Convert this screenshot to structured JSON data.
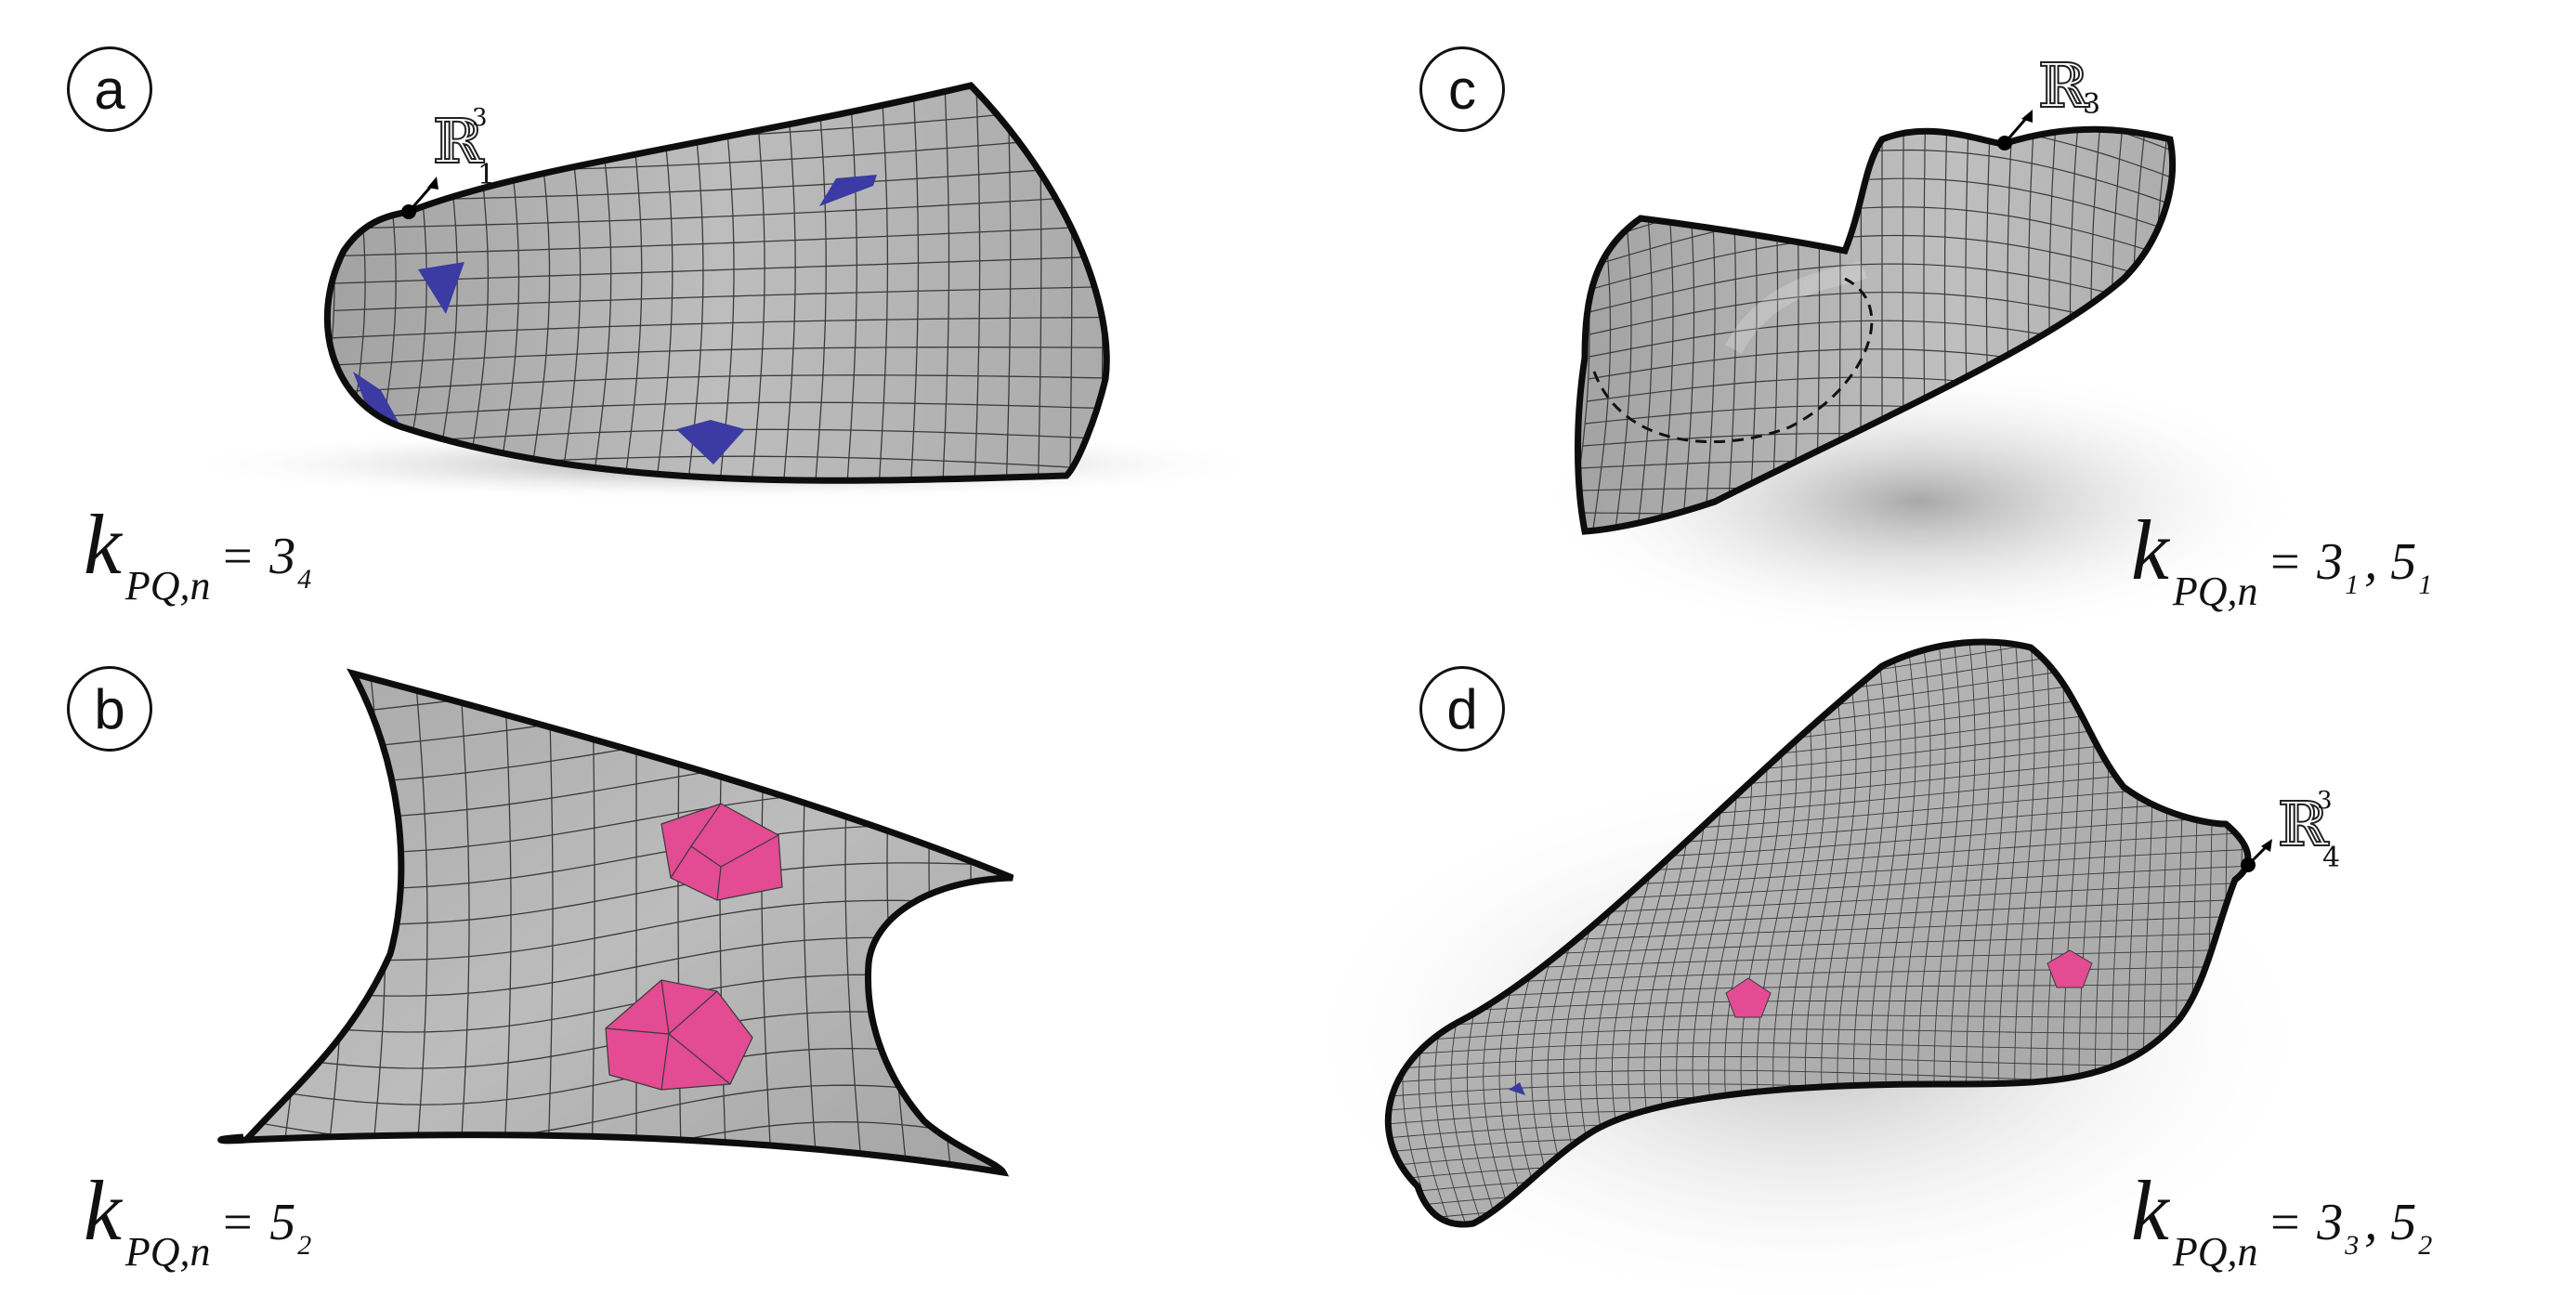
{
  "panels": {
    "a": {
      "label": "a",
      "formula": {
        "k": "k",
        "subscript": "PQ,n",
        "eq": "=",
        "values": [
          {
            "base": "3",
            "sub": "4"
          }
        ]
      },
      "space": {
        "base": "ℝ",
        "sup": "3",
        "sub": "1"
      }
    },
    "b": {
      "label": "b",
      "formula": {
        "k": "k",
        "subscript": "PQ,n",
        "eq": "=",
        "values": [
          {
            "base": "5",
            "sub": "2"
          }
        ]
      }
    },
    "c": {
      "label": "c",
      "formula": {
        "k": "k",
        "subscript": "PQ,n",
        "eq": "=",
        "values": [
          {
            "base": "3",
            "sub": "1"
          },
          {
            "base": "5",
            "sub": "1"
          }
        ],
        "sep": ","
      },
      "space": {
        "base": "ℝ",
        "sub": "3"
      }
    },
    "d": {
      "label": "d",
      "formula": {
        "k": "k",
        "subscript": "PQ,n",
        "eq": "=",
        "values": [
          {
            "base": "3",
            "sub": "3"
          },
          {
            "base": "5",
            "sub": "2"
          }
        ],
        "sep": ","
      },
      "space": {
        "base": "ℝ",
        "sup": "3",
        "sub": "4"
      }
    }
  },
  "colors": {
    "surface": "#b4b4b4",
    "mesh": "#3a3a3a",
    "outline": "#0d0d0d",
    "valence3": "#3b3ba3",
    "valence5": "#e34b92"
  }
}
